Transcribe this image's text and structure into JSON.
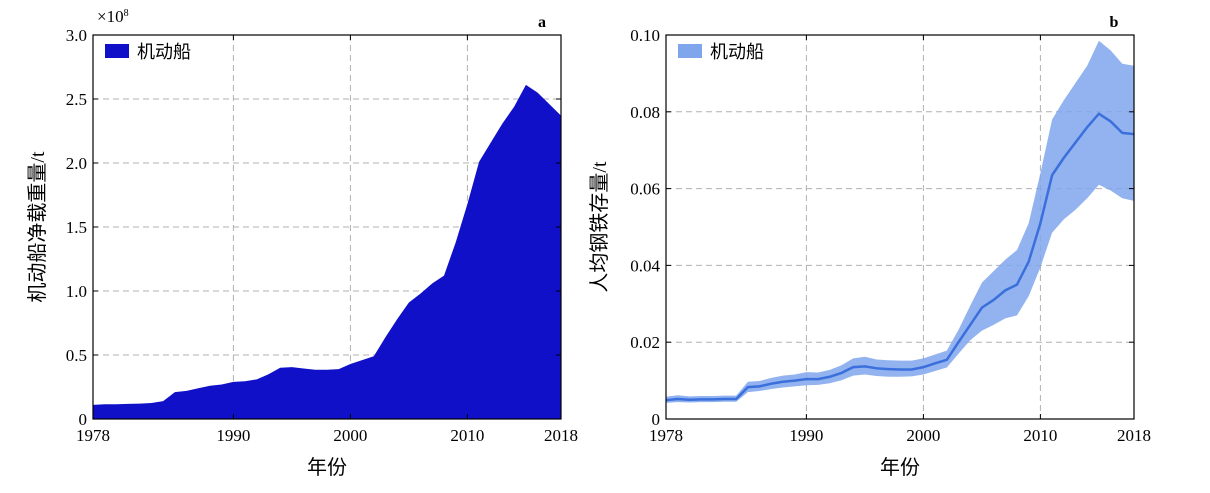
{
  "charts": [
    {
      "panel_label": "a",
      "y_label": "机动船净载重量/t",
      "x_label": "年份",
      "y_multiplier": "×10",
      "y_multiplier_exp": "8",
      "legend_label": "机动船",
      "x_ticks": [
        "1978",
        "1990",
        "2000",
        "2010",
        "2018"
      ],
      "y_ticks": [
        "0",
        "0.5",
        "1.0",
        "1.5",
        "2.0",
        "2.5",
        "3.0"
      ],
      "color": "#1010c8"
    },
    {
      "panel_label": "b",
      "y_label": "人均钢铁存量/t",
      "x_label": "年份",
      "legend_label": "机动船",
      "x_ticks": [
        "1978",
        "1990",
        "2000",
        "2010",
        "2018"
      ],
      "y_ticks": [
        "0",
        "0.02",
        "0.04",
        "0.06",
        "0.08",
        "0.10"
      ],
      "color": "#3a6fdc",
      "band_color": "#7fa6ec"
    }
  ],
  "chart_data": [
    {
      "type": "area",
      "x_unit": "year",
      "xlim": [
        1978,
        2018
      ],
      "ylim": [
        0,
        3.0
      ],
      "y_scale_factor": "1e8",
      "grid": true,
      "legend_position": "top-left",
      "series": [
        {
          "name": "机动船",
          "x": [
            1978,
            1979,
            1980,
            1981,
            1982,
            1983,
            1984,
            1985,
            1986,
            1987,
            1988,
            1989,
            1990,
            1991,
            1992,
            1993,
            1994,
            1995,
            1996,
            1997,
            1998,
            1999,
            2000,
            2001,
            2002,
            2003,
            2004,
            2005,
            2006,
            2007,
            2008,
            2009,
            2010,
            2011,
            2012,
            2013,
            2014,
            2015,
            2016,
            2017,
            2018
          ],
          "values": [
            0.11,
            0.115,
            0.115,
            0.118,
            0.12,
            0.125,
            0.14,
            0.21,
            0.22,
            0.24,
            0.26,
            0.27,
            0.29,
            0.295,
            0.31,
            0.35,
            0.4,
            0.405,
            0.395,
            0.385,
            0.385,
            0.39,
            0.43,
            0.46,
            0.49,
            0.64,
            0.78,
            0.91,
            0.98,
            1.06,
            1.12,
            1.38,
            1.68,
            2.01,
            2.16,
            2.31,
            2.44,
            2.61,
            2.55,
            2.46,
            2.37
          ]
        }
      ]
    },
    {
      "type": "line",
      "x_unit": "year",
      "xlim": [
        1978,
        2018
      ],
      "ylim": [
        0,
        0.1
      ],
      "grid": true,
      "legend_position": "top-left",
      "series": [
        {
          "name": "机动船",
          "x": [
            1978,
            1979,
            1980,
            1981,
            1982,
            1983,
            1984,
            1985,
            1986,
            1987,
            1988,
            1989,
            1990,
            1991,
            1992,
            1993,
            1994,
            1995,
            1996,
            1997,
            1998,
            1999,
            2000,
            2001,
            2002,
            2003,
            2004,
            2005,
            2006,
            2007,
            2008,
            2009,
            2010,
            2011,
            2012,
            2013,
            2014,
            2015,
            2016,
            2017,
            2018
          ],
          "values": [
            0.0049,
            0.0052,
            0.005,
            0.0051,
            0.0051,
            0.0052,
            0.0052,
            0.0083,
            0.0085,
            0.0092,
            0.0097,
            0.01,
            0.0104,
            0.0104,
            0.011,
            0.012,
            0.0135,
            0.0137,
            0.0132,
            0.013,
            0.0129,
            0.0129,
            0.0135,
            0.0145,
            0.0154,
            0.02,
            0.0245,
            0.029,
            0.031,
            0.0335,
            0.035,
            0.041,
            0.051,
            0.0635,
            0.068,
            0.072,
            0.076,
            0.0795,
            0.0775,
            0.0745,
            0.0742
          ],
          "lower": [
            0.0042,
            0.0044,
            0.0043,
            0.0044,
            0.0044,
            0.0045,
            0.0045,
            0.007,
            0.0073,
            0.0078,
            0.0082,
            0.0085,
            0.0088,
            0.0089,
            0.0093,
            0.0101,
            0.0113,
            0.0116,
            0.0112,
            0.011,
            0.011,
            0.0111,
            0.0116,
            0.0125,
            0.0134,
            0.017,
            0.0205,
            0.023,
            0.0245,
            0.0262,
            0.027,
            0.032,
            0.0395,
            0.0485,
            0.052,
            0.0545,
            0.0575,
            0.061,
            0.0595,
            0.0575,
            0.0568
          ],
          "upper": [
            0.0058,
            0.0062,
            0.0059,
            0.006,
            0.006,
            0.0061,
            0.0061,
            0.0097,
            0.0099,
            0.0107,
            0.0113,
            0.0116,
            0.0122,
            0.0121,
            0.0128,
            0.014,
            0.0158,
            0.0162,
            0.0155,
            0.0153,
            0.0152,
            0.0152,
            0.0158,
            0.0168,
            0.0178,
            0.0232,
            0.0295,
            0.0355,
            0.0385,
            0.0415,
            0.044,
            0.051,
            0.064,
            0.078,
            0.083,
            0.0875,
            0.092,
            0.0985,
            0.096,
            0.0925,
            0.092
          ]
        }
      ]
    }
  ]
}
